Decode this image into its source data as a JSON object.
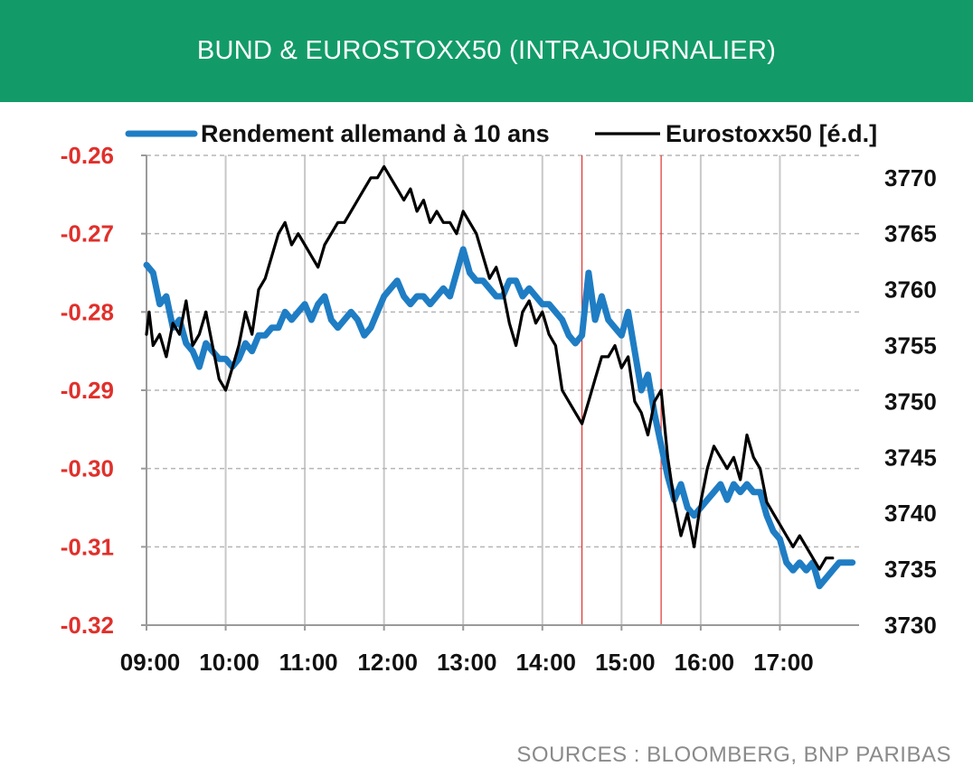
{
  "header": {
    "title": "BUND & EUROSTOXX50 (INTRAJOURNALIER)"
  },
  "footer": {
    "source": "SOURCES : BLOOMBERG, BNP PARIBAS"
  },
  "colors": {
    "banner": "#129b68",
    "bund": "#1f7dc4",
    "stoxx": "#000000",
    "left_axis_text": "#e0302b",
    "marker_lines": "#e0302b",
    "grid": "#b5b5b5"
  },
  "chart_data": {
    "type": "line",
    "x_ticks": [
      "09:00",
      "10:00",
      "11:00",
      "12:00",
      "13:00",
      "14:00",
      "15:00",
      "16:00",
      "17:00"
    ],
    "x_range": [
      "09:00",
      "18:00"
    ],
    "y_left": {
      "ticks": [
        "-0.26",
        "-0.27",
        "-0.28",
        "-0.29",
        "-0.30",
        "-0.31",
        "-0.32"
      ],
      "range": [
        -0.32,
        -0.26
      ]
    },
    "y_right": {
      "ticks": [
        "3770",
        "3765",
        "3760",
        "3755",
        "3750",
        "3745",
        "3740",
        "3735",
        "3730"
      ],
      "range": [
        3730,
        3772
      ]
    },
    "vertical_markers": [
      "14:30",
      "15:30"
    ],
    "grid": {
      "horizontal": "dashed",
      "vertical": "solid"
    },
    "legend_position": "top",
    "series": [
      {
        "name": "Rendement allemand à 10 ans",
        "axis": "left",
        "points": [
          [
            "09:00",
            -0.274
          ],
          [
            "09:05",
            -0.275
          ],
          [
            "09:10",
            -0.279
          ],
          [
            "09:15",
            -0.278
          ],
          [
            "09:20",
            -0.282
          ],
          [
            "09:25",
            -0.281
          ],
          [
            "09:30",
            -0.284
          ],
          [
            "09:35",
            -0.285
          ],
          [
            "09:40",
            -0.287
          ],
          [
            "09:45",
            -0.284
          ],
          [
            "09:50",
            -0.285
          ],
          [
            "09:55",
            -0.286
          ],
          [
            "10:00",
            -0.286
          ],
          [
            "10:05",
            -0.287
          ],
          [
            "10:10",
            -0.286
          ],
          [
            "10:15",
            -0.284
          ],
          [
            "10:20",
            -0.285
          ],
          [
            "10:25",
            -0.283
          ],
          [
            "10:30",
            -0.283
          ],
          [
            "10:35",
            -0.282
          ],
          [
            "10:40",
            -0.282
          ],
          [
            "10:45",
            -0.28
          ],
          [
            "10:50",
            -0.281
          ],
          [
            "10:55",
            -0.28
          ],
          [
            "11:00",
            -0.279
          ],
          [
            "11:05",
            -0.281
          ],
          [
            "11:10",
            -0.279
          ],
          [
            "11:15",
            -0.278
          ],
          [
            "11:20",
            -0.281
          ],
          [
            "11:25",
            -0.282
          ],
          [
            "11:30",
            -0.281
          ],
          [
            "11:35",
            -0.28
          ],
          [
            "11:40",
            -0.281
          ],
          [
            "11:45",
            -0.283
          ],
          [
            "11:50",
            -0.282
          ],
          [
            "11:55",
            -0.28
          ],
          [
            "12:00",
            -0.278
          ],
          [
            "12:05",
            -0.277
          ],
          [
            "12:10",
            -0.276
          ],
          [
            "12:15",
            -0.278
          ],
          [
            "12:20",
            -0.279
          ],
          [
            "12:25",
            -0.278
          ],
          [
            "12:30",
            -0.278
          ],
          [
            "12:35",
            -0.279
          ],
          [
            "12:40",
            -0.278
          ],
          [
            "12:45",
            -0.277
          ],
          [
            "12:50",
            -0.278
          ],
          [
            "12:55",
            -0.275
          ],
          [
            "13:00",
            -0.272
          ],
          [
            "13:05",
            -0.275
          ],
          [
            "13:10",
            -0.276
          ],
          [
            "13:15",
            -0.276
          ],
          [
            "13:20",
            -0.277
          ],
          [
            "13:25",
            -0.278
          ],
          [
            "13:30",
            -0.278
          ],
          [
            "13:35",
            -0.276
          ],
          [
            "13:40",
            -0.276
          ],
          [
            "13:45",
            -0.278
          ],
          [
            "13:50",
            -0.277
          ],
          [
            "13:55",
            -0.278
          ],
          [
            "14:00",
            -0.279
          ],
          [
            "14:05",
            -0.279
          ],
          [
            "14:10",
            -0.28
          ],
          [
            "14:15",
            -0.281
          ],
          [
            "14:20",
            -0.283
          ],
          [
            "14:25",
            -0.284
          ],
          [
            "14:30",
            -0.283
          ],
          [
            "14:35",
            -0.275
          ],
          [
            "14:40",
            -0.281
          ],
          [
            "14:45",
            -0.278
          ],
          [
            "14:50",
            -0.281
          ],
          [
            "14:55",
            -0.282
          ],
          [
            "15:00",
            -0.283
          ],
          [
            "15:05",
            -0.28
          ],
          [
            "15:10",
            -0.285
          ],
          [
            "15:15",
            -0.29
          ],
          [
            "15:20",
            -0.288
          ],
          [
            "15:25",
            -0.293
          ],
          [
            "15:30",
            -0.297
          ],
          [
            "15:35",
            -0.301
          ],
          [
            "15:40",
            -0.304
          ],
          [
            "15:45",
            -0.302
          ],
          [
            "15:50",
            -0.305
          ],
          [
            "15:55",
            -0.306
          ],
          [
            "16:00",
            -0.305
          ],
          [
            "16:05",
            -0.304
          ],
          [
            "16:10",
            -0.303
          ],
          [
            "16:15",
            -0.302
          ],
          [
            "16:20",
            -0.304
          ],
          [
            "16:25",
            -0.302
          ],
          [
            "16:30",
            -0.303
          ],
          [
            "16:35",
            -0.302
          ],
          [
            "16:40",
            -0.303
          ],
          [
            "16:45",
            -0.303
          ],
          [
            "16:50",
            -0.306
          ],
          [
            "16:55",
            -0.308
          ],
          [
            "17:00",
            -0.309
          ],
          [
            "17:05",
            -0.312
          ],
          [
            "17:10",
            -0.313
          ],
          [
            "17:15",
            -0.312
          ],
          [
            "17:20",
            -0.313
          ],
          [
            "17:25",
            -0.312
          ],
          [
            "17:30",
            -0.315
          ],
          [
            "17:35",
            -0.314
          ],
          [
            "17:40",
            -0.313
          ],
          [
            "17:45",
            -0.312
          ],
          [
            "17:50",
            -0.312
          ],
          [
            "17:55",
            -0.312
          ]
        ]
      },
      {
        "name": "Eurostoxx50 [é.d.]",
        "axis": "right",
        "points": [
          [
            "09:00",
            3756
          ],
          [
            "09:02",
            3758
          ],
          [
            "09:05",
            3755
          ],
          [
            "09:10",
            3756
          ],
          [
            "09:15",
            3754
          ],
          [
            "09:20",
            3757
          ],
          [
            "09:25",
            3756
          ],
          [
            "09:30",
            3759
          ],
          [
            "09:35",
            3755
          ],
          [
            "09:40",
            3756
          ],
          [
            "09:45",
            3758
          ],
          [
            "09:50",
            3755
          ],
          [
            "09:55",
            3752
          ],
          [
            "10:00",
            3751
          ],
          [
            "10:05",
            3753
          ],
          [
            "10:10",
            3755
          ],
          [
            "10:15",
            3758
          ],
          [
            "10:20",
            3756
          ],
          [
            "10:25",
            3760
          ],
          [
            "10:30",
            3761
          ],
          [
            "10:35",
            3763
          ],
          [
            "10:40",
            3765
          ],
          [
            "10:45",
            3766
          ],
          [
            "10:50",
            3764
          ],
          [
            "10:55",
            3765
          ],
          [
            "11:00",
            3764
          ],
          [
            "11:05",
            3763
          ],
          [
            "11:10",
            3762
          ],
          [
            "11:15",
            3764
          ],
          [
            "11:20",
            3765
          ],
          [
            "11:25",
            3766
          ],
          [
            "11:30",
            3766
          ],
          [
            "11:35",
            3767
          ],
          [
            "11:40",
            3768
          ],
          [
            "11:45",
            3769
          ],
          [
            "11:50",
            3770
          ],
          [
            "11:55",
            3770
          ],
          [
            "12:00",
            3771
          ],
          [
            "12:05",
            3770
          ],
          [
            "12:10",
            3769
          ],
          [
            "12:15",
            3768
          ],
          [
            "12:20",
            3769
          ],
          [
            "12:25",
            3767
          ],
          [
            "12:30",
            3768
          ],
          [
            "12:35",
            3766
          ],
          [
            "12:40",
            3767
          ],
          [
            "12:45",
            3766
          ],
          [
            "12:50",
            3766
          ],
          [
            "12:55",
            3765
          ],
          [
            "13:00",
            3767
          ],
          [
            "13:05",
            3766
          ],
          [
            "13:10",
            3765
          ],
          [
            "13:15",
            3763
          ],
          [
            "13:20",
            3761
          ],
          [
            "13:25",
            3762
          ],
          [
            "13:30",
            3760
          ],
          [
            "13:35",
            3757
          ],
          [
            "13:40",
            3755
          ],
          [
            "13:45",
            3758
          ],
          [
            "13:50",
            3759
          ],
          [
            "13:55",
            3757
          ],
          [
            "14:00",
            3758
          ],
          [
            "14:05",
            3756
          ],
          [
            "14:10",
            3755
          ],
          [
            "14:15",
            3751
          ],
          [
            "14:20",
            3750
          ],
          [
            "14:25",
            3749
          ],
          [
            "14:30",
            3748
          ],
          [
            "14:35",
            3750
          ],
          [
            "14:40",
            3752
          ],
          [
            "14:45",
            3754
          ],
          [
            "14:50",
            3754
          ],
          [
            "14:55",
            3755
          ],
          [
            "15:00",
            3753
          ],
          [
            "15:05",
            3754
          ],
          [
            "15:10",
            3750
          ],
          [
            "15:15",
            3749
          ],
          [
            "15:20",
            3747
          ],
          [
            "15:25",
            3750
          ],
          [
            "15:30",
            3751
          ],
          [
            "15:35",
            3745
          ],
          [
            "15:40",
            3741
          ],
          [
            "15:45",
            3738
          ],
          [
            "15:50",
            3740
          ],
          [
            "15:55",
            3737
          ],
          [
            "16:00",
            3741
          ],
          [
            "16:05",
            3744
          ],
          [
            "16:10",
            3746
          ],
          [
            "16:15",
            3745
          ],
          [
            "16:20",
            3744
          ],
          [
            "16:25",
            3745
          ],
          [
            "16:30",
            3743
          ],
          [
            "16:35",
            3747
          ],
          [
            "16:40",
            3745
          ],
          [
            "16:45",
            3744
          ],
          [
            "16:50",
            3741
          ],
          [
            "16:55",
            3740
          ],
          [
            "17:00",
            3739
          ],
          [
            "17:05",
            3738
          ],
          [
            "17:10",
            3737
          ],
          [
            "17:15",
            3738
          ],
          [
            "17:20",
            3737
          ],
          [
            "17:25",
            3736
          ],
          [
            "17:30",
            3735
          ],
          [
            "17:35",
            3736
          ],
          [
            "17:40",
            3736
          ]
        ]
      }
    ]
  }
}
